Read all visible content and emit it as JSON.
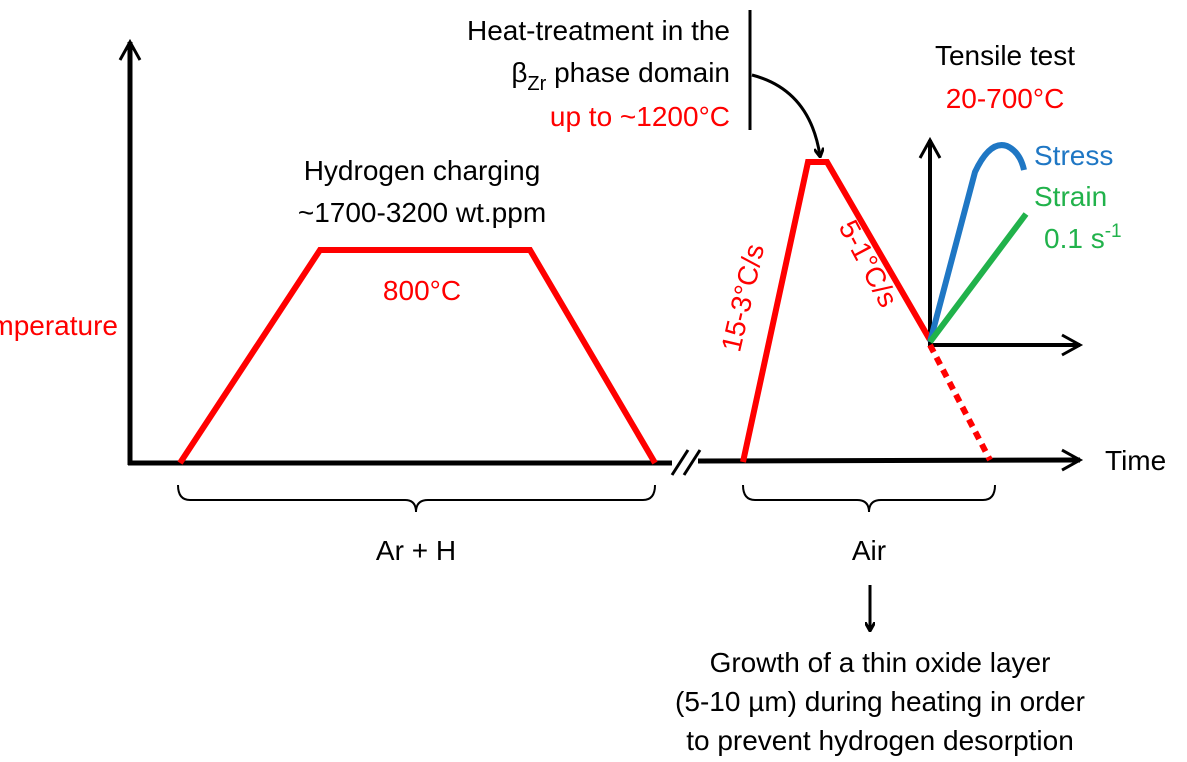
{
  "axes": {
    "y_label": "Temperature",
    "x_label": "Time"
  },
  "hydrogen": {
    "title": "Hydrogen charging",
    "content": "~1700-3200 wt.ppm",
    "temperature": "800°C",
    "atmosphere": "Ar + H"
  },
  "heat_treatment": {
    "line1": "Heat-treatment in the",
    "beta": "β",
    "subscript": "Zr",
    "line2_rest": " phase domain",
    "temperature": "up to ~1200°C",
    "heating_rate": "15-3°C/s",
    "cooling_rate": "5-1°C/s",
    "atmosphere": "Air"
  },
  "tensile": {
    "title": "Tensile test",
    "temperature": "20-700°C",
    "stress": "Stress",
    "strain": "Strain",
    "rate": "0.1 s",
    "rate_exponent": "-1"
  },
  "note": {
    "lines": [
      "Growth of a thin oxide layer",
      "(5-10 µm) during heating in order",
      "to prevent hydrogen desorption"
    ]
  }
}
